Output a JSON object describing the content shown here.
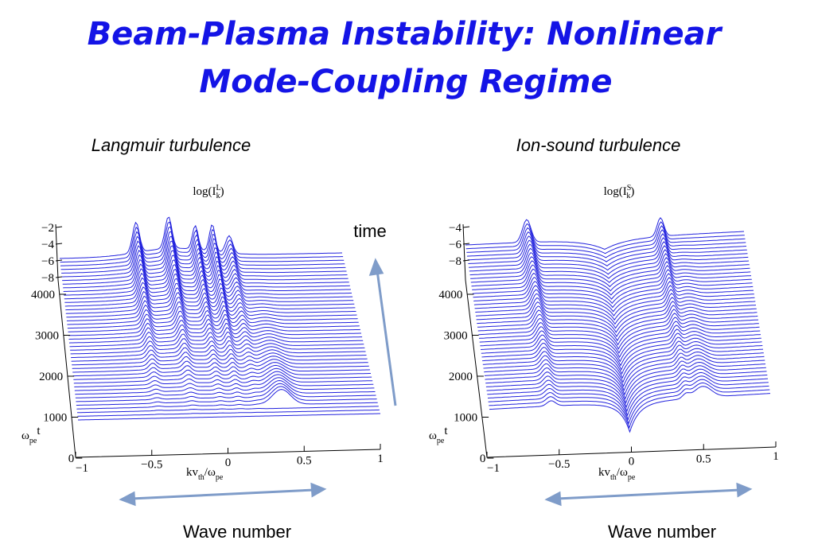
{
  "title": [
    "Beam-Plasma Instability: Nonlinear",
    "Mode-Coupling Regime"
  ],
  "time_label": "time",
  "panels": [
    {
      "heading": "Langmuir turbulence",
      "zlabel": {
        "a": "log(I",
        "sub": "k",
        "sup": "L",
        "b": ")"
      },
      "zticks": [
        "−2",
        "−4",
        "−6",
        "−8"
      ],
      "tticks": [
        "4000",
        "3000",
        "2000",
        "1000",
        "0"
      ],
      "tlabel": {
        "a": "ω",
        "sub": "pe",
        "b": "t"
      },
      "xticks": [
        "−1",
        "−0.5",
        "0",
        "0.5",
        "1"
      ],
      "xlabel": {
        "a": "kv",
        "sub1": "th",
        "b": "/ω",
        "sub2": "pe"
      },
      "caption": "Wave number"
    },
    {
      "heading": "Ion-sound turbulence",
      "zlabel": {
        "a": "log(I",
        "sub": "k",
        "sup": "S",
        "b": ")"
      },
      "zticks": [
        "−4",
        "−6",
        "−8"
      ],
      "tticks": [
        "4000",
        "3000",
        "2000",
        "1000",
        "0"
      ],
      "tlabel": {
        "a": "ω",
        "sub": "pe",
        "b": "t"
      },
      "xticks": [
        "−1",
        "−0.5",
        "0",
        "0.5",
        "1"
      ],
      "xlabel": {
        "a": "kv",
        "sub1": "th",
        "b": "/ω",
        "sub2": "pe"
      },
      "caption": "Wave number"
    }
  ]
}
